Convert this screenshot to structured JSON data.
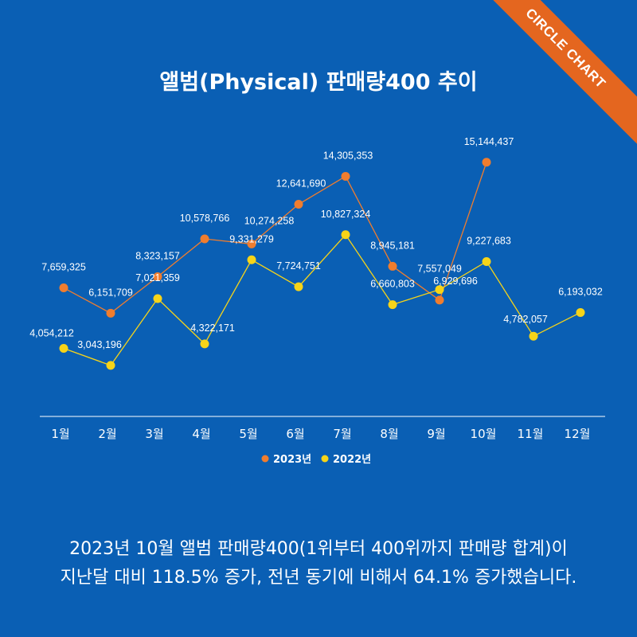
{
  "badge": "CIRCLE CHART",
  "caption": {
    "line1": "2023년 10월 앨범 판매량400(1위부터 400위까지 판매량 합계)이",
    "line2": "지난달 대비 118.5% 증가, 전년 동기에 비해서 64.1% 증가했습니다."
  },
  "colors": {
    "background": "#0a5fb4",
    "series_2023": "#f07d2e",
    "series_2022": "#f7d418",
    "badge": "#e4661f"
  },
  "chart_data": {
    "type": "line",
    "title": "앨범(Physical) 판매량400 추이",
    "categories": [
      "1월",
      "2월",
      "3월",
      "4월",
      "5월",
      "6월",
      "7월",
      "8월",
      "9월",
      "10월",
      "11월",
      "12월"
    ],
    "series": [
      {
        "name": "2023년",
        "values": [
          7659325,
          6151709,
          8323157,
          10578766,
          10274258,
          12641690,
          14305353,
          8945181,
          6929696,
          15144437,
          null,
          null
        ],
        "labels": [
          "7,659,325",
          "6,151,709",
          "8,323,157",
          "10,578,766",
          "10,274,258",
          "12,641,690",
          "14,305,353",
          "8,945,181",
          "6,929,696",
          "15,144,437",
          "",
          ""
        ]
      },
      {
        "name": "2022년",
        "values": [
          4054212,
          3043196,
          7021359,
          4322171,
          9331279,
          7724751,
          10827324,
          6660803,
          7557049,
          9227683,
          4782057,
          6193032
        ],
        "labels": [
          "4,054,212",
          "3,043,196",
          "7,021,359",
          "4,322,171",
          "9,331,279",
          "7,724,751",
          "10,827,324",
          "6,660,803",
          "7,557,049",
          "9,227,683",
          "4,782,057",
          "6,193,032"
        ]
      }
    ],
    "legend": "bottom-center",
    "grid": false,
    "ylim": [
      0,
      18500000
    ]
  }
}
